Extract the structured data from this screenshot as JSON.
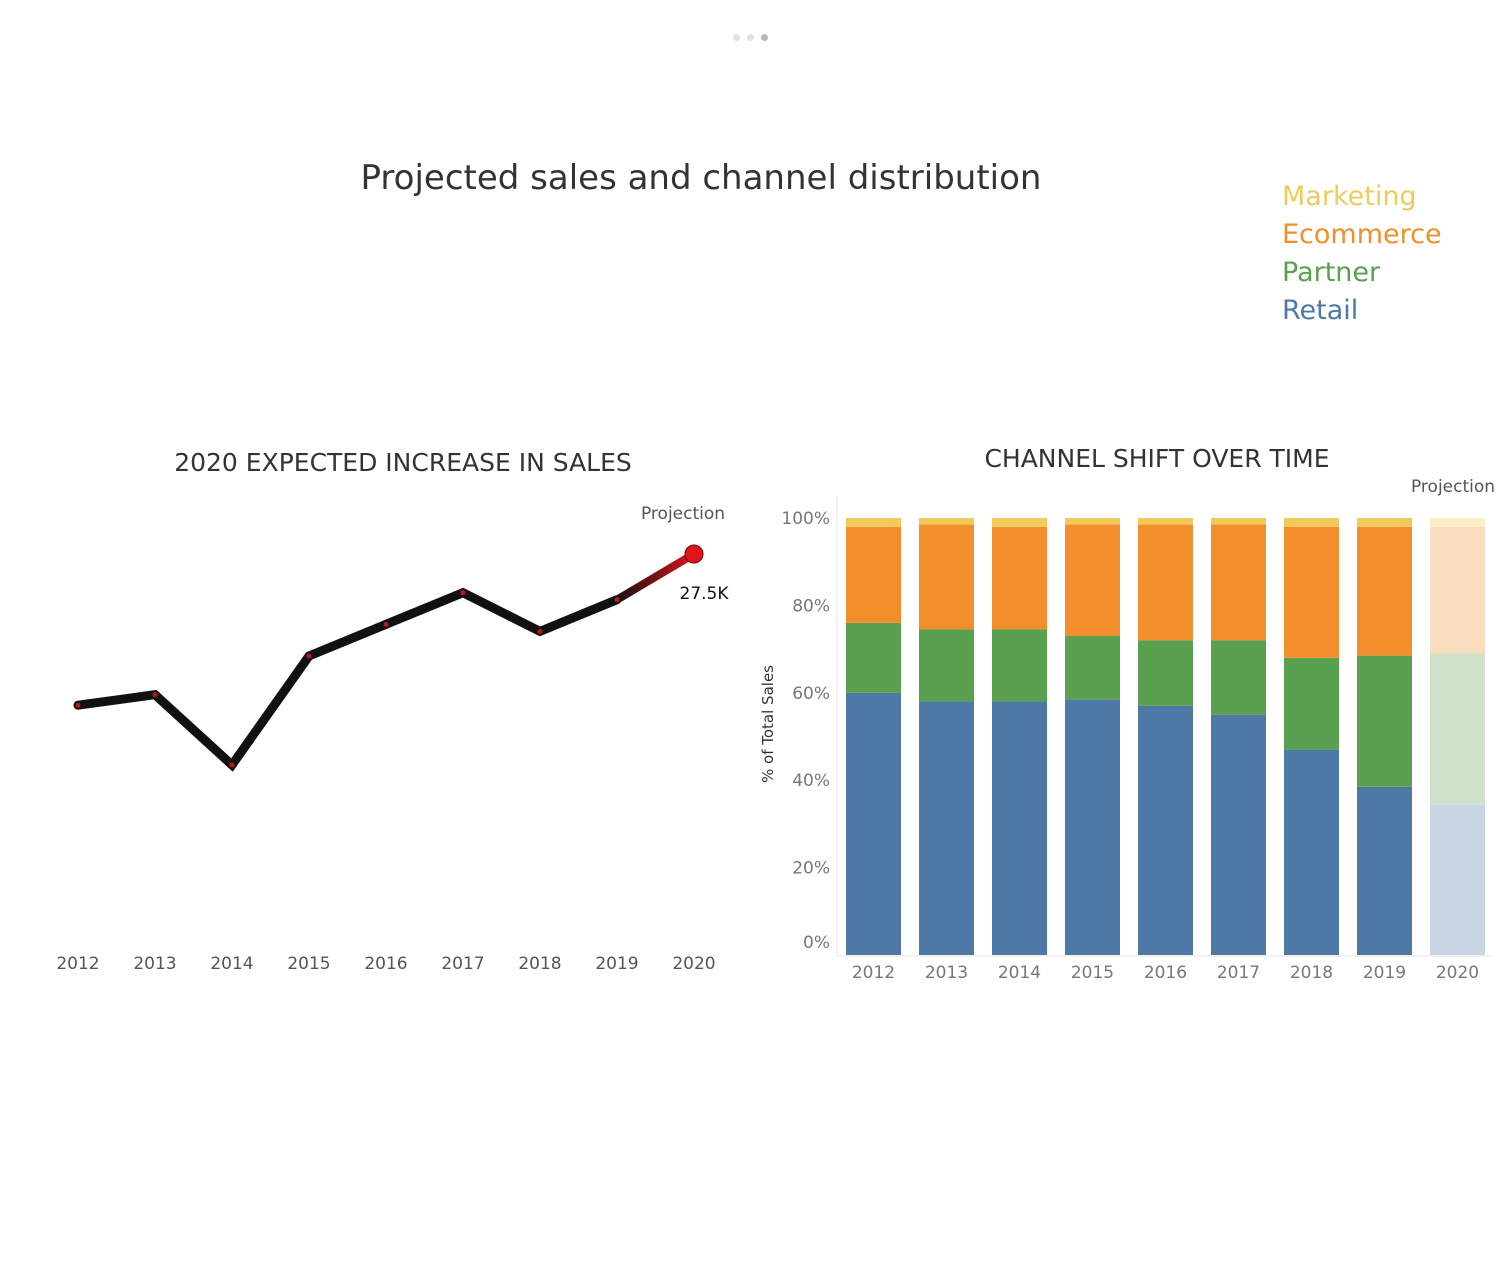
{
  "page": {
    "title": "Projected sales and channel distribution",
    "pager": {
      "count": 3,
      "active": 3
    }
  },
  "legend": [
    {
      "label": "Marketing",
      "color": "#f0cb5b"
    },
    {
      "label": "Ecommerce",
      "color": "#f28e2b"
    },
    {
      "label": "Partner",
      "color": "#59a14f"
    },
    {
      "label": "Retail",
      "color": "#4e79a7"
    }
  ],
  "chart_data": [
    {
      "type": "line",
      "title": "2020 EXPECTED INCREASE IN SALES",
      "categories": [
        "2012",
        "2013",
        "2014",
        "2015",
        "2016",
        "2017",
        "2018",
        "2019",
        "2020"
      ],
      "series": [
        {
          "values": [
            23.2,
            23.5,
            21.5,
            24.6,
            25.5,
            26.4,
            25.3,
            26.2,
            27.5
          ]
        }
      ],
      "projection_label": "Projection",
      "value_label": "27.5K",
      "line_color": "#111111",
      "projection_color": "#e0141a",
      "ylim": [
        17.6,
        29.0
      ]
    },
    {
      "type": "bar",
      "stacked": true,
      "title": "CHANNEL SHIFT OVER TIME",
      "ylabel": "% of Total Sales",
      "categories": [
        "2012",
        "2013",
        "2014",
        "2015",
        "2016",
        "2017",
        "2018",
        "2019",
        "2020"
      ],
      "yticks": [
        "0%",
        "20%",
        "40%",
        "60%",
        "80%",
        "100%"
      ],
      "ylim": [
        0,
        100
      ],
      "projection_label": "Projection",
      "projection_category": "2020",
      "series": [
        {
          "name": "Retail",
          "color": "#4e79a7",
          "projection_color": "#c8d6e4",
          "values": [
            60,
            58,
            58,
            58.5,
            57,
            55,
            47,
            38.5,
            34.5
          ]
        },
        {
          "name": "Partner",
          "color": "#59a14f",
          "projection_color": "#cde2c9",
          "values": [
            16,
            16.5,
            16.5,
            14.5,
            15,
            17,
            21,
            30,
            34.5
          ]
        },
        {
          "name": "Ecommerce",
          "color": "#f28e2b",
          "projection_color": "#fadcbf",
          "values": [
            22,
            24,
            23.5,
            25.5,
            26.5,
            26.5,
            30,
            29.5,
            29
          ]
        },
        {
          "name": "Marketing",
          "color": "#f0cb5b",
          "projection_color": "#fbeec8",
          "values": [
            2,
            1.5,
            2,
            1.5,
            1.5,
            1.5,
            2,
            2,
            2
          ]
        }
      ]
    }
  ]
}
